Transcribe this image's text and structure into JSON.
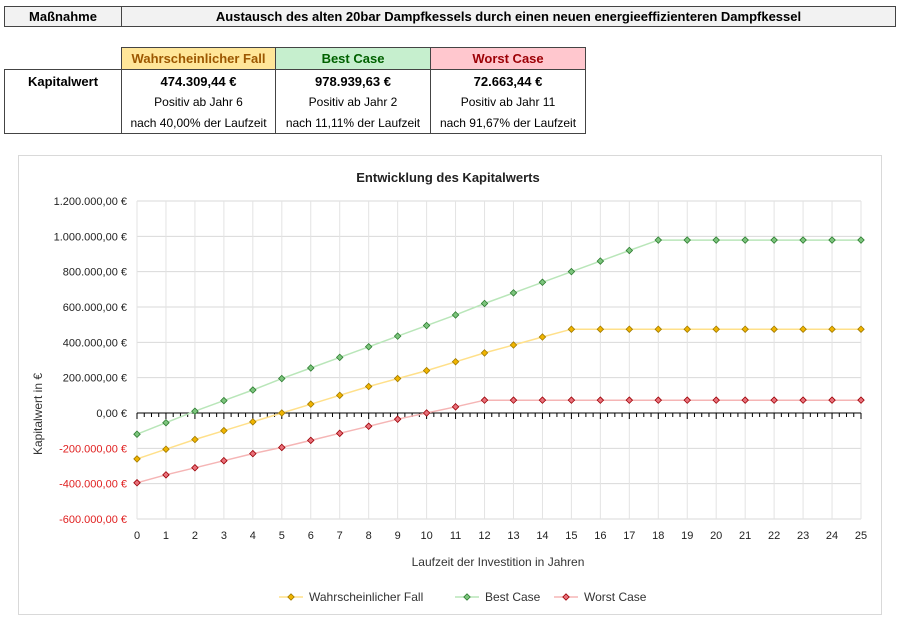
{
  "header": {
    "measure_label": "Maßnahme",
    "measure_text": "Austausch des alten 20bar Dampfkessels durch einen neuen energieeffizienteren Dampfkessel"
  },
  "summary": {
    "row_label": "Kapitalwert",
    "columns": [
      {
        "title": "Wahrscheinlicher Fall",
        "value": "474.309,44 €",
        "positive": "Positiv ab Jahr 6",
        "runtime": "nach 40,00% der Laufzeit",
        "bg": "#ffe699",
        "fg": "#9c5700"
      },
      {
        "title": "Best Case",
        "value": "978.939,63 €",
        "positive": "Positiv ab Jahr 2",
        "runtime": "nach 11,11% der Laufzeit",
        "bg": "#c6efce",
        "fg": "#006100"
      },
      {
        "title": "Worst Case",
        "value": "72.663,44 €",
        "positive": "Positiv ab Jahr 11",
        "runtime": "nach 91,67% der Laufzeit",
        "bg": "#ffc7ce",
        "fg": "#9c0006"
      }
    ]
  },
  "chart_data": {
    "type": "line",
    "title": "Entwicklung des Kapitalwerts",
    "xlabel": "Laufzeit der Investition in Jahren",
    "ylabel": "Kapitalwert in €",
    "x": [
      0,
      1,
      2,
      3,
      4,
      5,
      6,
      7,
      8,
      9,
      10,
      11,
      12,
      13,
      14,
      15,
      16,
      17,
      18,
      19,
      20,
      21,
      22,
      23,
      24,
      25
    ],
    "ylim": [
      -600000,
      1200000
    ],
    "yticks": [
      1200000,
      1000000,
      800000,
      600000,
      400000,
      200000,
      0,
      -200000,
      -400000,
      -600000
    ],
    "ytick_labels": [
      "1.200.000,00 €",
      "1.000.000,00 €",
      "800.000,00 €",
      "600.000,00 €",
      "400.000,00 €",
      "200.000,00 €",
      "0,00 €",
      "-200.000,00 €",
      "-400.000,00 €",
      "-600.000,00 €"
    ],
    "legend_position": "bottom",
    "grid": true,
    "series": [
      {
        "name": "Wahrscheinlicher Fall",
        "line_color": "#ffe08a",
        "marker_color": "#f0b400",
        "marker_border": "#a07a00",
        "values": [
          -260000,
          -205000,
          -150000,
          -100000,
          -50000,
          0,
          50000,
          100000,
          150000,
          195000,
          240000,
          290000,
          340000,
          385000,
          430000,
          474309,
          474309,
          474309,
          474309,
          474309,
          474309,
          474309,
          474309,
          474309,
          474309,
          474309
        ]
      },
      {
        "name": "Best Case",
        "line_color": "#b9e6b9",
        "marker_color": "#7cc47c",
        "marker_border": "#2e7d32",
        "values": [
          -120000,
          -55000,
          10000,
          70000,
          130000,
          195000,
          255000,
          315000,
          375000,
          435000,
          495000,
          555000,
          620000,
          680000,
          740000,
          800000,
          860000,
          920000,
          978940,
          978940,
          978940,
          978940,
          978940,
          978940,
          978940,
          978940
        ]
      },
      {
        "name": "Worst Case",
        "line_color": "#f5b5b5",
        "marker_color": "#e8707a",
        "marker_border": "#9c0006",
        "values": [
          -395000,
          -350000,
          -310000,
          -270000,
          -230000,
          -195000,
          -155000,
          -115000,
          -75000,
          -35000,
          0,
          35000,
          72663,
          72663,
          72663,
          72663,
          72663,
          72663,
          72663,
          72663,
          72663,
          72663,
          72663,
          72663,
          72663,
          72663
        ]
      }
    ]
  }
}
